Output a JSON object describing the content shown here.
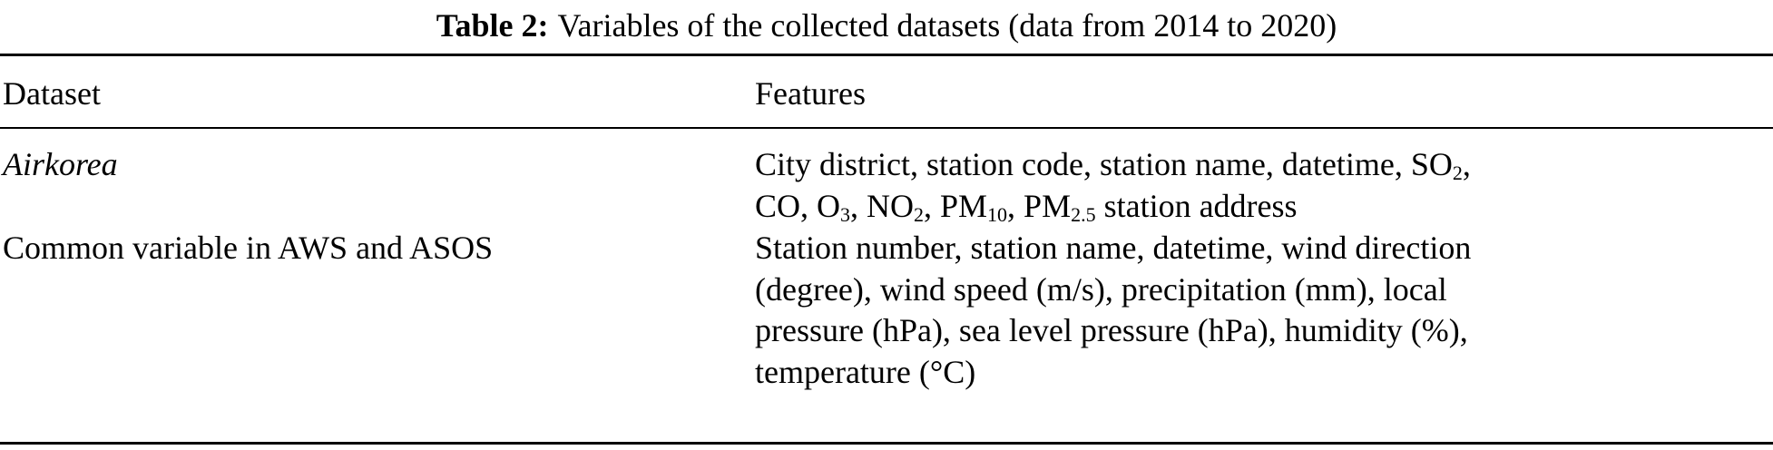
{
  "caption": {
    "label": "Table 2:",
    "text": "Variables of the collected datasets (data from 2014 to 2020)"
  },
  "header": {
    "col1": "Dataset",
    "col2": "Features"
  },
  "rows": [
    {
      "dataset": "Airkorea",
      "features": {
        "l1a": "City district, station code, station name, datetime, SO",
        "l1s": "2",
        "l1b": ",",
        "l2a": "CO, O",
        "l2s1": "3",
        "l2b": ", NO",
        "l2s2": "2",
        "l2c": ", PM",
        "l2s3": "10",
        "l2d": ", PM",
        "l2s4": "2.5",
        "l2e": " station address"
      }
    },
    {
      "dataset": "Common variable in AWS and ASOS",
      "features": [
        "Station number, station name, datetime, wind direction",
        "(degree), wind speed (m/s), precipitation (mm), local",
        "pressure (hPa), sea level pressure (hPa), humidity (%),",
        "temperature (°C)"
      ]
    }
  ]
}
